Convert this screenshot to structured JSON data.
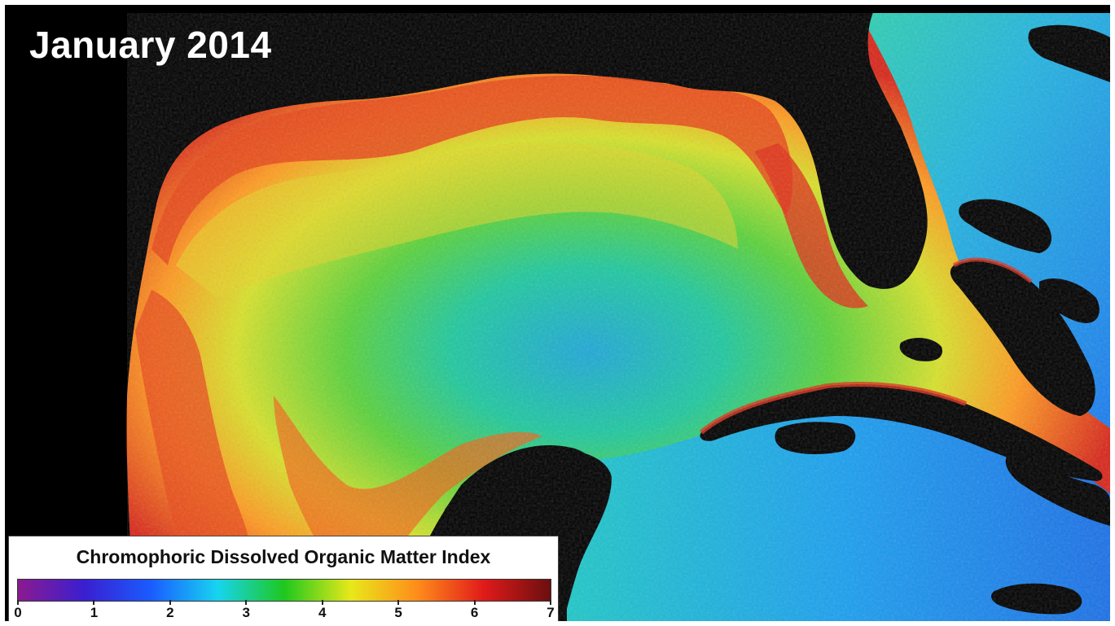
{
  "title": "January 2014",
  "legend": {
    "title": "Chromophoric Dissolved Organic Matter Index",
    "ticks": [
      "0",
      "1",
      "2",
      "3",
      "4",
      "5",
      "6",
      "7"
    ],
    "range": [
      0,
      7
    ],
    "colors": [
      "#8b1a8f",
      "#3a1fd0",
      "#1a5cff",
      "#17d4f0",
      "#1ec81e",
      "#e8e81a",
      "#ff8c1a",
      "#e01a1a",
      "#6b0f0f"
    ]
  },
  "map": {
    "background": "#000000",
    "land_color": "#000000"
  }
}
